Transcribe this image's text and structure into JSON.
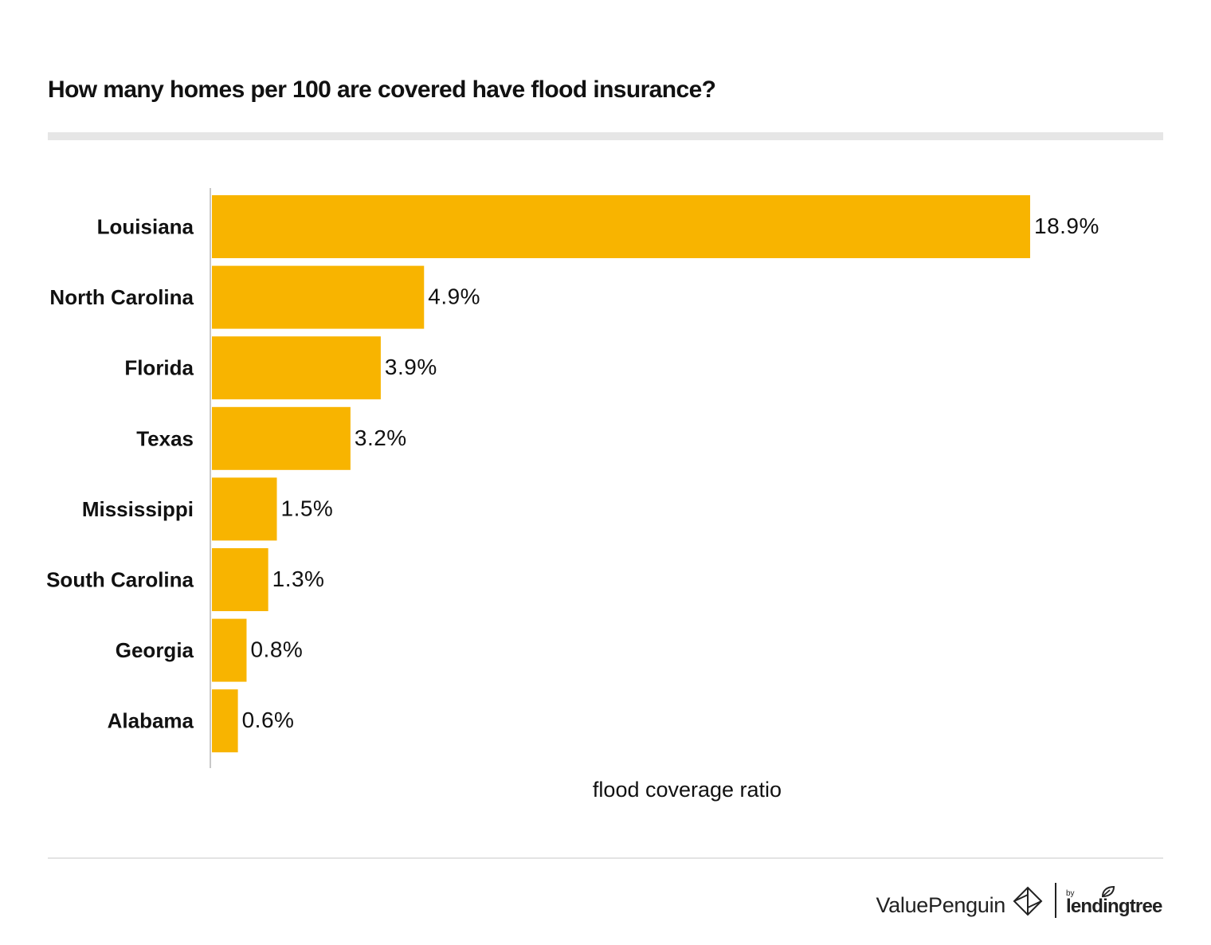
{
  "title": "How many homes per 100 are covered have flood insurance?",
  "colors": {
    "bar": "#F8B400",
    "text": "#111111",
    "axis": "#c8c8c8",
    "rule": "#e6e6e6"
  },
  "footer": {
    "brand": "ValuePenguin",
    "brand_icon": "valuepenguin-logo-icon",
    "by": "by",
    "partner": "lendingtree",
    "partner_icon": "leaf-icon"
  },
  "chart_data": {
    "type": "bar",
    "orientation": "horizontal",
    "categories": [
      "Louisiana",
      "North Carolina",
      "Florida",
      "Texas",
      "Mississippi",
      "South Carolina",
      "Georgia",
      "Alabama"
    ],
    "values": [
      18.9,
      4.9,
      3.9,
      3.2,
      1.5,
      1.3,
      0.8,
      0.6
    ],
    "data_labels": [
      "18.9%",
      "4.9%",
      "3.9%",
      "3.2%",
      "1.5%",
      "1.3%",
      "0.8%",
      "0.6%"
    ],
    "title": "How many homes per 100 are covered have flood insurance?",
    "xlabel": "flood coverage ratio",
    "ylabel": "",
    "xlim": [
      0,
      18.9
    ],
    "grid": false,
    "legend": "none"
  }
}
